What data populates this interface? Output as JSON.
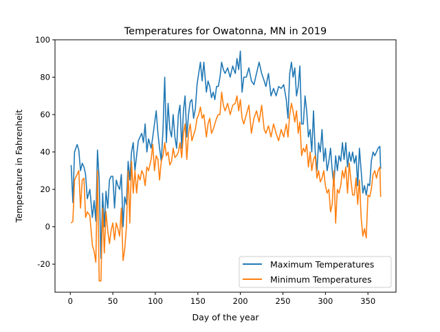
{
  "chart_data": {
    "type": "line",
    "title": "Temperatures for Owatonna, MN in 2019",
    "xlabel": "Day of the year",
    "ylabel": "Temperature in Fahrenheit",
    "xlim": [
      -18,
      383
    ],
    "ylim": [
      -35,
      100
    ],
    "xticks": [
      0,
      50,
      100,
      150,
      200,
      250,
      300,
      350
    ],
    "yticks": [
      -20,
      0,
      20,
      40,
      60,
      80,
      100
    ],
    "grid": false,
    "legend_position": "lower-right",
    "x": [
      1,
      3,
      5,
      8,
      10,
      12,
      14,
      16,
      18,
      20,
      23,
      26,
      28,
      30,
      32,
      34,
      36,
      38,
      40,
      42,
      44,
      46,
      48,
      50,
      52,
      54,
      56,
      58,
      60,
      62,
      64,
      66,
      68,
      70,
      72,
      74,
      76,
      78,
      80,
      82,
      84,
      86,
      88,
      90,
      92,
      95,
      97,
      99,
      101,
      103,
      105,
      107,
      109,
      111,
      113,
      115,
      117,
      119,
      121,
      123,
      125,
      127,
      129,
      131,
      133,
      135,
      137,
      139,
      141,
      143,
      145,
      147,
      149,
      151,
      153,
      155,
      157,
      160,
      162,
      164,
      166,
      168,
      170,
      172,
      174,
      176,
      178,
      180,
      182,
      185,
      188,
      191,
      194,
      196,
      198,
      200,
      202,
      204,
      207,
      210,
      213,
      216,
      219,
      222,
      225,
      228,
      230,
      233,
      236,
      239,
      242,
      245,
      248,
      251,
      254,
      256,
      258,
      260,
      262,
      264,
      266,
      268,
      270,
      272,
      274,
      276,
      278,
      280,
      282,
      284,
      286,
      288,
      290,
      292,
      294,
      296,
      298,
      300,
      302,
      304,
      306,
      308,
      310,
      312,
      314,
      316,
      318,
      320,
      322,
      324,
      326,
      328,
      330,
      332,
      334,
      336,
      338,
      340,
      342,
      344,
      346,
      348,
      350,
      352,
      354,
      356,
      358,
      360,
      362,
      364,
      365
    ],
    "series": [
      {
        "name": "Maximum Temperatures",
        "color": "#1f77b4",
        "values": [
          33,
          13,
          40,
          44,
          41,
          30,
          34,
          32,
          28,
          15,
          20,
          5,
          14,
          3,
          41,
          25,
          -17,
          18,
          0,
          19,
          10,
          25,
          27,
          27,
          10,
          25,
          22,
          20,
          28,
          0,
          16,
          12,
          35,
          25,
          40,
          45,
          30,
          38,
          46,
          48,
          50,
          45,
          55,
          40,
          47,
          42,
          48,
          55,
          62,
          50,
          42,
          35,
          52,
          80,
          45,
          66,
          52,
          48,
          60,
          48,
          42,
          60,
          65,
          42,
          62,
          70,
          48,
          60,
          67,
          68,
          58,
          63,
          76,
          82,
          88,
          78,
          88,
          72,
          78,
          75,
          69,
          72,
          68,
          75,
          75,
          80,
          88,
          84,
          82,
          85,
          80,
          86,
          82,
          90,
          84,
          94,
          72,
          80,
          80,
          85,
          78,
          76,
          82,
          88,
          82,
          78,
          75,
          82,
          70,
          74,
          70,
          75,
          74,
          76,
          68,
          58,
          82,
          88,
          80,
          85,
          70,
          75,
          86,
          55,
          55,
          70,
          62,
          48,
          52,
          40,
          62,
          40,
          30,
          45,
          40,
          52,
          35,
          42,
          30,
          35,
          42,
          30,
          22,
          38,
          30,
          38,
          35,
          45,
          36,
          45,
          32,
          40,
          35,
          40,
          34,
          38,
          22,
          42,
          30,
          18,
          22,
          17,
          23,
          22,
          35,
          40,
          38,
          40,
          42,
          43,
          31
        ]
      },
      {
        "name": "Minimum Temperatures",
        "color": "#ff7f0e",
        "values": [
          2,
          3,
          25,
          28,
          30,
          10,
          25,
          26,
          5,
          8,
          6,
          -10,
          -13,
          -19,
          30,
          -29,
          -29,
          10,
          -14,
          8,
          -2,
          -9,
          -2,
          2,
          -7,
          2,
          -1,
          -5,
          10,
          -18,
          -12,
          0,
          30,
          2,
          35,
          18,
          30,
          18,
          28,
          25,
          30,
          28,
          22,
          32,
          30,
          36,
          44,
          30,
          38,
          36,
          25,
          35,
          38,
          45,
          38,
          40,
          33,
          35,
          42,
          37,
          38,
          40,
          45,
          37,
          50,
          55,
          36,
          50,
          55,
          46,
          49,
          52,
          58,
          60,
          64,
          58,
          60,
          48,
          55,
          58,
          50,
          52,
          55,
          58,
          60,
          60,
          72,
          65,
          62,
          66,
          60,
          65,
          66,
          70,
          62,
          68,
          58,
          55,
          60,
          65,
          50,
          58,
          62,
          56,
          65,
          52,
          50,
          54,
          48,
          55,
          50,
          46,
          52,
          48,
          55,
          48,
          60,
          66,
          62,
          56,
          62,
          50,
          56,
          38,
          42,
          40,
          44,
          32,
          40,
          30,
          36,
          38,
          26,
          30,
          24,
          26,
          30,
          22,
          18,
          20,
          8,
          12,
          30,
          2,
          20,
          18,
          22,
          30,
          26,
          32,
          18,
          34,
          25,
          17,
          17,
          26,
          12,
          25,
          5,
          -5,
          -1,
          -6,
          17,
          16,
          20,
          28,
          30,
          26,
          30,
          32,
          16
        ]
      }
    ]
  }
}
